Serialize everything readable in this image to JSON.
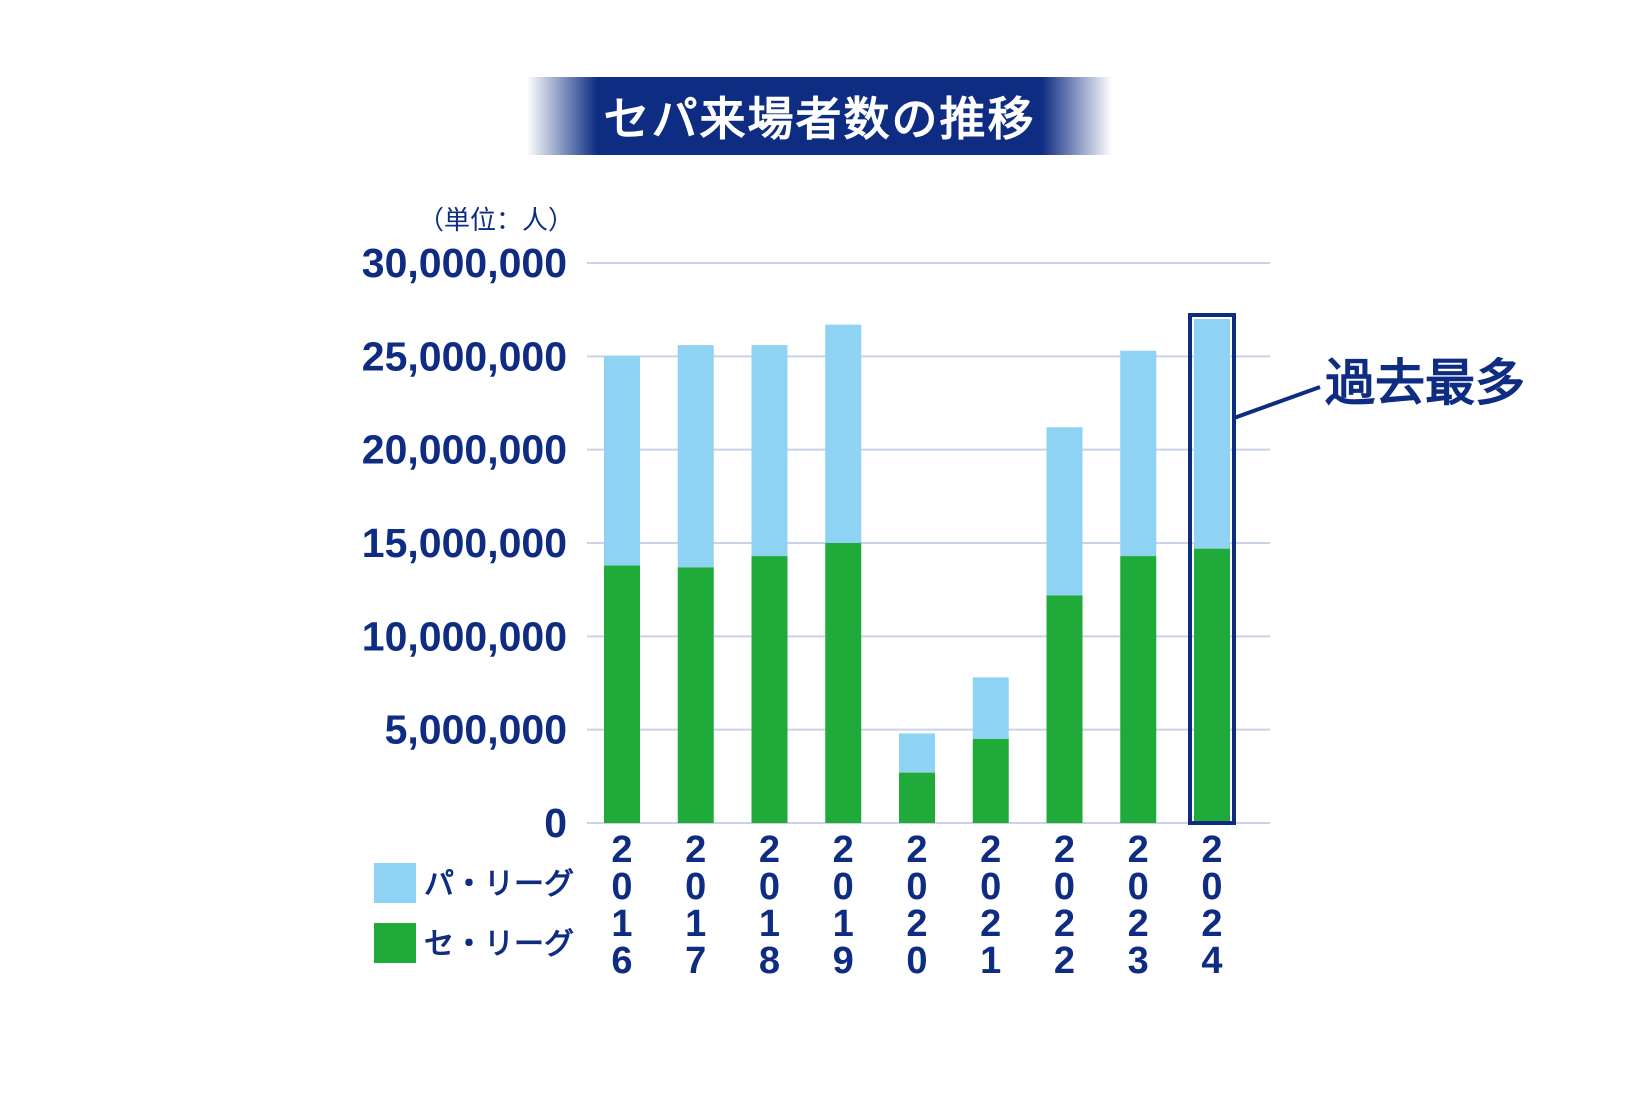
{
  "title": "セパ来場者数の推移",
  "chart_data": {
    "type": "bar",
    "stacked": true,
    "title": "セパ来場者数の推移",
    "unit_label": "（単位：人）",
    "categories": [
      "2016",
      "2017",
      "2018",
      "2019",
      "2020",
      "2021",
      "2022",
      "2023",
      "2024"
    ],
    "series": [
      {
        "name": "セ・リーグ",
        "color": "#20aa3a",
        "values": [
          13800000,
          13700000,
          14300000,
          15000000,
          2700000,
          4500000,
          12200000,
          14300000,
          14700000
        ]
      },
      {
        "name": "パ・リーグ",
        "color": "#8fd3f4",
        "values": [
          11200000,
          11900000,
          11300000,
          11700000,
          2100000,
          3300000,
          9000000,
          11000000,
          12300000
        ]
      }
    ],
    "ylim": [
      0,
      30000000
    ],
    "yticks": [
      {
        "value": 0,
        "label": "0"
      },
      {
        "value": 5000000,
        "label": "5,000,000"
      },
      {
        "value": 10000000,
        "label": "10,000,000"
      },
      {
        "value": 15000000,
        "label": "15,000,000"
      },
      {
        "value": 20000000,
        "label": "20,000,000"
      },
      {
        "value": 25000000,
        "label": "25,000,000"
      },
      {
        "value": 30000000,
        "label": "30,000,000"
      }
    ],
    "grid": true,
    "legend_placement": "bottom-left",
    "legend_order": [
      "パ・リーグ",
      "セ・リーグ"
    ],
    "highlight": {
      "category": "2024",
      "label": "過去最多"
    },
    "colors": {
      "text": "#0e2c82",
      "grid": "#c9d2e6",
      "highlight_border": "#0e2c82"
    }
  }
}
